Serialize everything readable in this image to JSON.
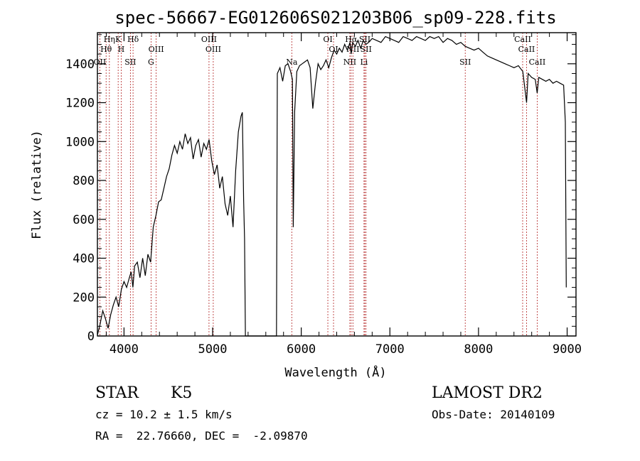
{
  "chart_data": {
    "type": "line",
    "title": "spec-56667-EG012606S021203B06_sp09-228.fits",
    "xlabel": "Wavelength (Å)",
    "ylabel": "Flux (relative)",
    "xlim": [
      3700,
      9100
    ],
    "ylim": [
      0,
      1560
    ],
    "x_ticks": [
      4000,
      5000,
      6000,
      7000,
      8000,
      9000
    ],
    "y_ticks": [
      0,
      200,
      400,
      600,
      800,
      1000,
      1200,
      1400
    ],
    "grid": false,
    "series": [
      {
        "points": [
          [
            3700,
            5
          ],
          [
            3730,
            60
          ],
          [
            3760,
            130
          ],
          [
            3790,
            90
          ],
          [
            3820,
            40
          ],
          [
            3850,
            110
          ],
          [
            3880,
            160
          ],
          [
            3910,
            200
          ],
          [
            3940,
            150
          ],
          [
            3970,
            240
          ],
          [
            4000,
            280
          ],
          [
            4030,
            250
          ],
          [
            4060,
            300
          ],
          [
            4080,
            330
          ],
          [
            4100,
            250
          ],
          [
            4120,
            360
          ],
          [
            4150,
            380
          ],
          [
            4180,
            300
          ],
          [
            4210,
            400
          ],
          [
            4240,
            310
          ],
          [
            4270,
            420
          ],
          [
            4300,
            380
          ],
          [
            4330,
            560
          ],
          [
            4360,
            620
          ],
          [
            4390,
            690
          ],
          [
            4420,
            700
          ],
          [
            4450,
            760
          ],
          [
            4480,
            820
          ],
          [
            4510,
            860
          ],
          [
            4540,
            930
          ],
          [
            4570,
            980
          ],
          [
            4600,
            940
          ],
          [
            4630,
            1000
          ],
          [
            4660,
            960
          ],
          [
            4690,
            1040
          ],
          [
            4720,
            990
          ],
          [
            4750,
            1020
          ],
          [
            4780,
            910
          ],
          [
            4810,
            980
          ],
          [
            4840,
            1010
          ],
          [
            4870,
            920
          ],
          [
            4900,
            990
          ],
          [
            4930,
            960
          ],
          [
            4960,
            1010
          ],
          [
            4990,
            900
          ],
          [
            5020,
            830
          ],
          [
            5050,
            880
          ],
          [
            5080,
            760
          ],
          [
            5110,
            820
          ],
          [
            5140,
            680
          ],
          [
            5170,
            620
          ],
          [
            5200,
            720
          ],
          [
            5230,
            560
          ],
          [
            5260,
            850
          ],
          [
            5290,
            1050
          ],
          [
            5320,
            1130
          ],
          [
            5335,
            1150
          ],
          [
            5350,
            700
          ],
          [
            5360,
            500
          ],
          [
            5370,
            0
          ],
          [
            5720,
            0
          ],
          [
            5730,
            1350
          ],
          [
            5760,
            1380
          ],
          [
            5790,
            1310
          ],
          [
            5820,
            1390
          ],
          [
            5850,
            1400
          ],
          [
            5880,
            1360
          ],
          [
            5900,
            1320
          ],
          [
            5910,
            560
          ],
          [
            5925,
            1150
          ],
          [
            5950,
            1360
          ],
          [
            5980,
            1390
          ],
          [
            6010,
            1400
          ],
          [
            6040,
            1410
          ],
          [
            6070,
            1420
          ],
          [
            6100,
            1380
          ],
          [
            6130,
            1170
          ],
          [
            6160,
            1300
          ],
          [
            6190,
            1400
          ],
          [
            6220,
            1370
          ],
          [
            6250,
            1390
          ],
          [
            6280,
            1420
          ],
          [
            6310,
            1380
          ],
          [
            6340,
            1430
          ],
          [
            6370,
            1470
          ],
          [
            6400,
            1450
          ],
          [
            6430,
            1480
          ],
          [
            6460,
            1460
          ],
          [
            6490,
            1500
          ],
          [
            6520,
            1470
          ],
          [
            6550,
            1510
          ],
          [
            6563,
            1450
          ],
          [
            6580,
            1510
          ],
          [
            6610,
            1490
          ],
          [
            6640,
            1520
          ],
          [
            6670,
            1480
          ],
          [
            6700,
            1520
          ],
          [
            6730,
            1500
          ],
          [
            6760,
            1510
          ],
          [
            6800,
            1530
          ],
          [
            6850,
            1520
          ],
          [
            6900,
            1510
          ],
          [
            6950,
            1540
          ],
          [
            7000,
            1530
          ],
          [
            7050,
            1520
          ],
          [
            7100,
            1510
          ],
          [
            7150,
            1540
          ],
          [
            7200,
            1530
          ],
          [
            7250,
            1520
          ],
          [
            7300,
            1540
          ],
          [
            7350,
            1530
          ],
          [
            7400,
            1520
          ],
          [
            7450,
            1540
          ],
          [
            7500,
            1530
          ],
          [
            7550,
            1540
          ],
          [
            7600,
            1510
          ],
          [
            7650,
            1530
          ],
          [
            7700,
            1520
          ],
          [
            7750,
            1500
          ],
          [
            7800,
            1510
          ],
          [
            7850,
            1490
          ],
          [
            7900,
            1480
          ],
          [
            7950,
            1470
          ],
          [
            8000,
            1480
          ],
          [
            8050,
            1460
          ],
          [
            8100,
            1440
          ],
          [
            8150,
            1430
          ],
          [
            8200,
            1420
          ],
          [
            8250,
            1410
          ],
          [
            8300,
            1400
          ],
          [
            8350,
            1390
          ],
          [
            8400,
            1380
          ],
          [
            8450,
            1390
          ],
          [
            8500,
            1360
          ],
          [
            8542,
            1200
          ],
          [
            8560,
            1350
          ],
          [
            8600,
            1330
          ],
          [
            8640,
            1320
          ],
          [
            8662,
            1250
          ],
          [
            8680,
            1330
          ],
          [
            8720,
            1320
          ],
          [
            8760,
            1310
          ],
          [
            8800,
            1320
          ],
          [
            8840,
            1300
          ],
          [
            8880,
            1310
          ],
          [
            8920,
            1300
          ],
          [
            8960,
            1290
          ],
          [
            8980,
            1100
          ],
          [
            8990,
            250
          ]
        ]
      }
    ],
    "lines": [
      {
        "name": "Hη",
        "wavelength": 3835
      },
      {
        "name": "Hθ",
        "wavelength": 3798
      },
      {
        "name": "OII",
        "wavelength": 3727
      },
      {
        "name": "K",
        "wavelength": 3934
      },
      {
        "name": "H",
        "wavelength": 3968
      },
      {
        "name": "SII",
        "wavelength": 4072
      },
      {
        "name": "Hδ",
        "wavelength": 4102
      },
      {
        "name": "OIII",
        "wavelength": 4363
      },
      {
        "name": "G",
        "wavelength": 4305
      },
      {
        "name": "OIII",
        "wavelength": 4959
      },
      {
        "name": "OIII",
        "wavelength": 5007
      },
      {
        "name": "Na",
        "wavelength": 5893
      },
      {
        "name": "OI",
        "wavelength": 6300
      },
      {
        "name": "OI",
        "wavelength": 6364
      },
      {
        "name": "NII",
        "wavelength": 6548
      },
      {
        "name": "Hα",
        "wavelength": 6563
      },
      {
        "name": "NII",
        "wavelength": 6583
      },
      {
        "name": "Li",
        "wavelength": 6708
      },
      {
        "name": "SII",
        "wavelength": 6717
      },
      {
        "name": "SII",
        "wavelength": 6731
      },
      {
        "name": "SII",
        "wavelength": 7850
      },
      {
        "name": "CaII",
        "wavelength": 8498
      },
      {
        "name": "CaII",
        "wavelength": 8542
      },
      {
        "name": "CaII",
        "wavelength": 8662
      }
    ]
  },
  "info": {
    "object_class": "STAR",
    "subclass": "K5",
    "redshift": "cz = 10.2 ± 1.5 km/s",
    "coords": "RA =  22.76660, DEC =  -2.09870",
    "survey": "LAMOST DR2",
    "obs_date": "Obs-Date: 20140109"
  },
  "colors": {
    "line_marker": "#b22222",
    "spectrum": "#000000"
  }
}
